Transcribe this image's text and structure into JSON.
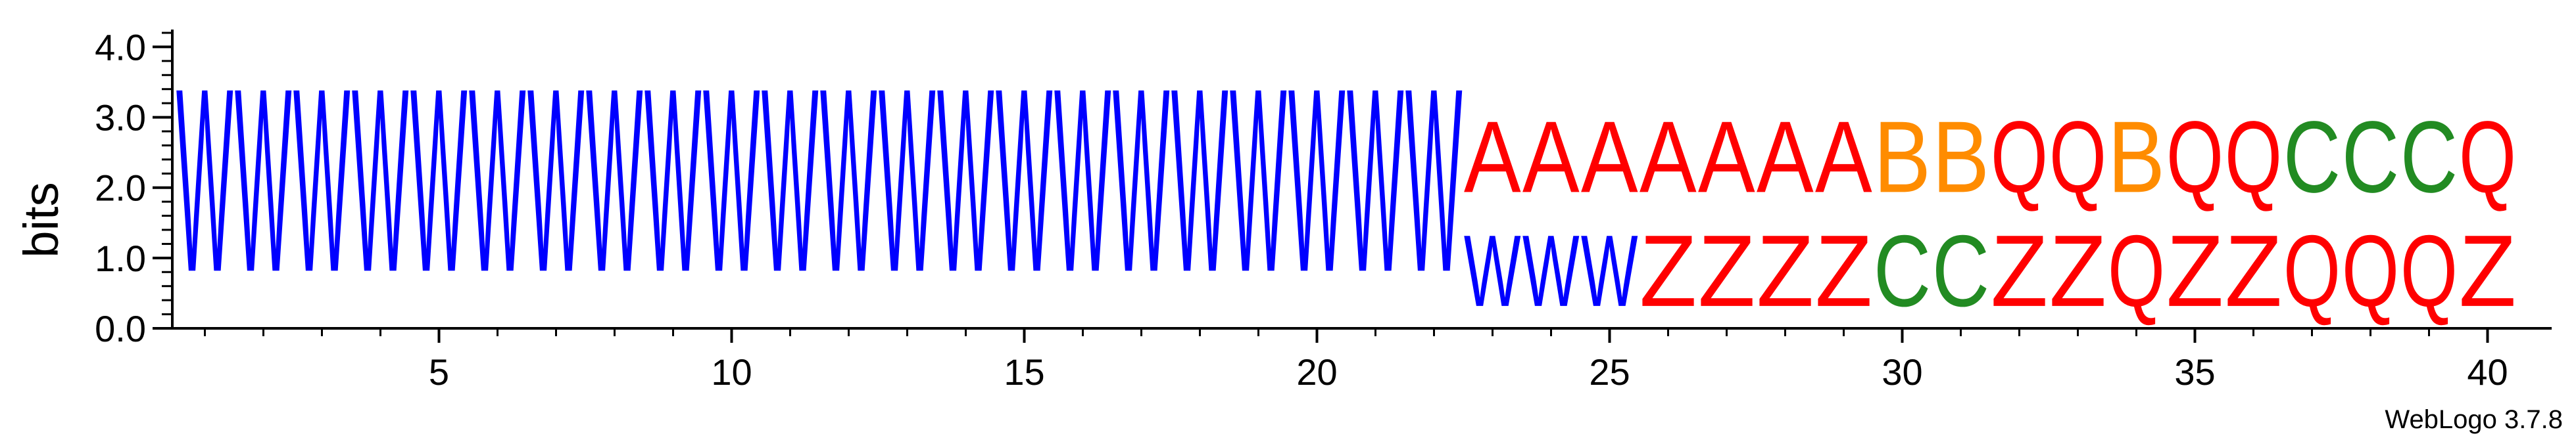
{
  "chart_data": {
    "type": "sequence-logo",
    "ylabel": "bits",
    "ylim": [
      0,
      4.2
    ],
    "yticks": [
      "0.0",
      "1.0",
      "2.0",
      "3.0",
      "4.0"
    ],
    "xticks": [
      "5",
      "10",
      "15",
      "20",
      "25",
      "30",
      "35",
      "40"
    ],
    "footer": "WebLogo 3.7.8",
    "colors": {
      "W": "#0000ff",
      "A": "#ff0000",
      "Z": "#ff0000",
      "Q": "#ff0000",
      "B": "#ff8c00",
      "C": "#228b22"
    },
    "positions": [
      {
        "pos": 1,
        "stack": [
          {
            "letter": "W",
            "bits": 4.17
          }
        ]
      },
      {
        "pos": 2,
        "stack": [
          {
            "letter": "W",
            "bits": 4.17
          }
        ]
      },
      {
        "pos": 3,
        "stack": [
          {
            "letter": "W",
            "bits": 4.17
          }
        ]
      },
      {
        "pos": 4,
        "stack": [
          {
            "letter": "W",
            "bits": 4.17
          }
        ]
      },
      {
        "pos": 5,
        "stack": [
          {
            "letter": "W",
            "bits": 4.17
          }
        ]
      },
      {
        "pos": 6,
        "stack": [
          {
            "letter": "W",
            "bits": 4.17
          }
        ]
      },
      {
        "pos": 7,
        "stack": [
          {
            "letter": "W",
            "bits": 4.17
          }
        ]
      },
      {
        "pos": 8,
        "stack": [
          {
            "letter": "W",
            "bits": 4.17
          }
        ]
      },
      {
        "pos": 9,
        "stack": [
          {
            "letter": "W",
            "bits": 4.17
          }
        ]
      },
      {
        "pos": 10,
        "stack": [
          {
            "letter": "W",
            "bits": 4.17
          }
        ]
      },
      {
        "pos": 11,
        "stack": [
          {
            "letter": "W",
            "bits": 4.17
          }
        ]
      },
      {
        "pos": 12,
        "stack": [
          {
            "letter": "W",
            "bits": 4.17
          }
        ]
      },
      {
        "pos": 13,
        "stack": [
          {
            "letter": "W",
            "bits": 4.17
          }
        ]
      },
      {
        "pos": 14,
        "stack": [
          {
            "letter": "W",
            "bits": 4.17
          }
        ]
      },
      {
        "pos": 15,
        "stack": [
          {
            "letter": "W",
            "bits": 4.17
          }
        ]
      },
      {
        "pos": 16,
        "stack": [
          {
            "letter": "W",
            "bits": 4.17
          }
        ]
      },
      {
        "pos": 17,
        "stack": [
          {
            "letter": "W",
            "bits": 4.17
          }
        ]
      },
      {
        "pos": 18,
        "stack": [
          {
            "letter": "W",
            "bits": 4.17
          }
        ]
      },
      {
        "pos": 19,
        "stack": [
          {
            "letter": "W",
            "bits": 4.17
          }
        ]
      },
      {
        "pos": 20,
        "stack": [
          {
            "letter": "W",
            "bits": 4.17
          }
        ]
      },
      {
        "pos": 21,
        "stack": [
          {
            "letter": "W",
            "bits": 4.17
          }
        ]
      },
      {
        "pos": 22,
        "stack": [
          {
            "letter": "W",
            "bits": 4.17
          }
        ]
      },
      {
        "pos": 23,
        "stack": [
          {
            "letter": "W",
            "bits": 1.62
          },
          {
            "letter": "A",
            "bits": 1.62
          }
        ]
      },
      {
        "pos": 24,
        "stack": [
          {
            "letter": "W",
            "bits": 1.62
          },
          {
            "letter": "A",
            "bits": 1.62
          }
        ]
      },
      {
        "pos": 25,
        "stack": [
          {
            "letter": "W",
            "bits": 1.62
          },
          {
            "letter": "A",
            "bits": 1.62
          }
        ]
      },
      {
        "pos": 26,
        "stack": [
          {
            "letter": "Z",
            "bits": 1.62
          },
          {
            "letter": "A",
            "bits": 1.62
          }
        ]
      },
      {
        "pos": 27,
        "stack": [
          {
            "letter": "Z",
            "bits": 1.62
          },
          {
            "letter": "A",
            "bits": 1.62
          }
        ]
      },
      {
        "pos": 28,
        "stack": [
          {
            "letter": "Z",
            "bits": 1.62
          },
          {
            "letter": "A",
            "bits": 1.62
          }
        ]
      },
      {
        "pos": 29,
        "stack": [
          {
            "letter": "Z",
            "bits": 1.62
          },
          {
            "letter": "A",
            "bits": 1.62
          }
        ]
      },
      {
        "pos": 30,
        "stack": [
          {
            "letter": "C",
            "bits": 1.62
          },
          {
            "letter": "B",
            "bits": 1.62
          }
        ]
      },
      {
        "pos": 31,
        "stack": [
          {
            "letter": "C",
            "bits": 1.62
          },
          {
            "letter": "B",
            "bits": 1.62
          }
        ]
      },
      {
        "pos": 32,
        "stack": [
          {
            "letter": "Z",
            "bits": 1.62
          },
          {
            "letter": "Q",
            "bits": 1.62
          }
        ]
      },
      {
        "pos": 33,
        "stack": [
          {
            "letter": "Z",
            "bits": 1.62
          },
          {
            "letter": "Q",
            "bits": 1.62
          }
        ]
      },
      {
        "pos": 34,
        "stack": [
          {
            "letter": "Q",
            "bits": 1.62
          },
          {
            "letter": "B",
            "bits": 1.62
          }
        ]
      },
      {
        "pos": 35,
        "stack": [
          {
            "letter": "Z",
            "bits": 1.62
          },
          {
            "letter": "Q",
            "bits": 1.62
          }
        ]
      },
      {
        "pos": 36,
        "stack": [
          {
            "letter": "Z",
            "bits": 1.62
          },
          {
            "letter": "Q",
            "bits": 1.62
          }
        ]
      },
      {
        "pos": 37,
        "stack": [
          {
            "letter": "Q",
            "bits": 1.62
          },
          {
            "letter": "C",
            "bits": 1.62
          }
        ]
      },
      {
        "pos": 38,
        "stack": [
          {
            "letter": "Q",
            "bits": 1.62
          },
          {
            "letter": "C",
            "bits": 1.62
          }
        ]
      },
      {
        "pos": 39,
        "stack": [
          {
            "letter": "Q",
            "bits": 1.62
          },
          {
            "letter": "C",
            "bits": 1.62
          }
        ]
      },
      {
        "pos": 40,
        "stack": [
          {
            "letter": "Z",
            "bits": 1.62
          },
          {
            "letter": "Q",
            "bits": 1.62
          }
        ]
      }
    ]
  }
}
